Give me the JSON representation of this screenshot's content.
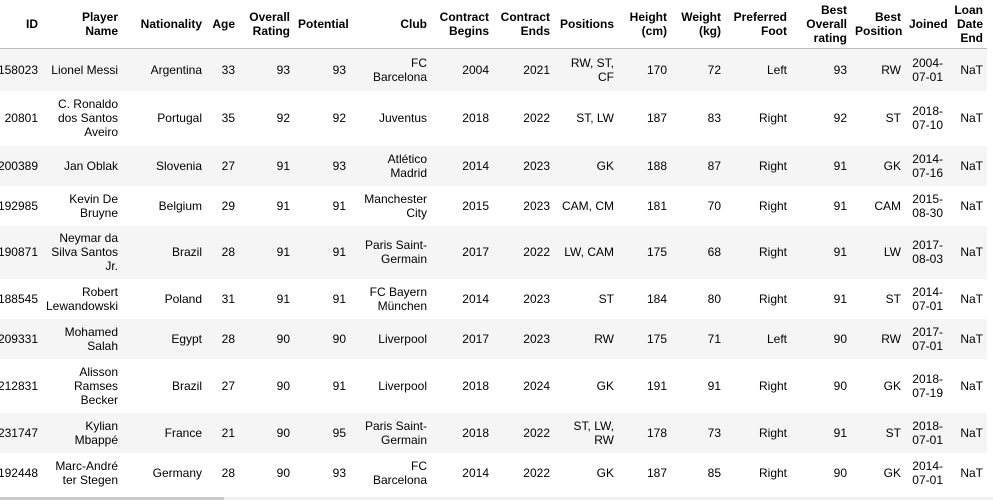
{
  "table": {
    "columns": [
      "ID",
      "Player Name",
      "Nationality",
      "Age",
      "Overall Rating",
      "Potential",
      "Club",
      "Contract Begins",
      "Contract Ends",
      "Positions",
      "Height (cm)",
      "Weight (kg)",
      "Preferred Foot",
      "Best Overall rating",
      "Best Position",
      "Joined",
      "Loan Date End"
    ],
    "rows": [
      [
        "158023",
        "Lionel Messi",
        "Argentina",
        "33",
        "93",
        "93",
        "FC Barcelona",
        "2004",
        "2021",
        "RW, ST, CF",
        "170",
        "72",
        "Left",
        "93",
        "RW",
        "2004-07-01",
        "NaT"
      ],
      [
        "20801",
        "C. Ronaldo dos Santos Aveiro",
        "Portugal",
        "35",
        "92",
        "92",
        "Juventus",
        "2018",
        "2022",
        "ST, LW",
        "187",
        "83",
        "Right",
        "92",
        "ST",
        "2018-07-10",
        "NaT"
      ],
      [
        "200389",
        "Jan Oblak",
        "Slovenia",
        "27",
        "91",
        "93",
        "Atlético Madrid",
        "2014",
        "2023",
        "GK",
        "188",
        "87",
        "Right",
        "91",
        "GK",
        "2014-07-16",
        "NaT"
      ],
      [
        "192985",
        "Kevin De Bruyne",
        "Belgium",
        "29",
        "91",
        "91",
        "Manchester City",
        "2015",
        "2023",
        "CAM, CM",
        "181",
        "70",
        "Right",
        "91",
        "CAM",
        "2015-08-30",
        "NaT"
      ],
      [
        "190871",
        "Neymar da Silva Santos Jr.",
        "Brazil",
        "28",
        "91",
        "91",
        "Paris Saint-Germain",
        "2017",
        "2022",
        "LW, CAM",
        "175",
        "68",
        "Right",
        "91",
        "LW",
        "2017-08-03",
        "NaT"
      ],
      [
        "188545",
        "Robert Lewandowski",
        "Poland",
        "31",
        "91",
        "91",
        "FC Bayern München",
        "2014",
        "2023",
        "ST",
        "184",
        "80",
        "Right",
        "91",
        "ST",
        "2014-07-01",
        "NaT"
      ],
      [
        "209331",
        "Mohamed Salah",
        "Egypt",
        "28",
        "90",
        "90",
        "Liverpool",
        "2017",
        "2023",
        "RW",
        "175",
        "71",
        "Left",
        "90",
        "RW",
        "2017-07-01",
        "NaT"
      ],
      [
        "212831",
        "Alisson Ramses Becker",
        "Brazil",
        "27",
        "90",
        "91",
        "Liverpool",
        "2018",
        "2024",
        "GK",
        "191",
        "91",
        "Right",
        "90",
        "GK",
        "2018-07-19",
        "NaT"
      ],
      [
        "231747",
        "Kylian Mbappé",
        "France",
        "21",
        "90",
        "95",
        "Paris Saint-Germain",
        "2018",
        "2022",
        "ST, LW, RW",
        "178",
        "73",
        "Right",
        "91",
        "ST",
        "2018-07-01",
        "NaT"
      ],
      [
        "192448",
        "Marc-André ter Stegen",
        "Germany",
        "28",
        "90",
        "93",
        "FC Barcelona",
        "2014",
        "2022",
        "GK",
        "187",
        "85",
        "Right",
        "90",
        "GK",
        "2014-07-01",
        "NaT"
      ]
    ]
  }
}
